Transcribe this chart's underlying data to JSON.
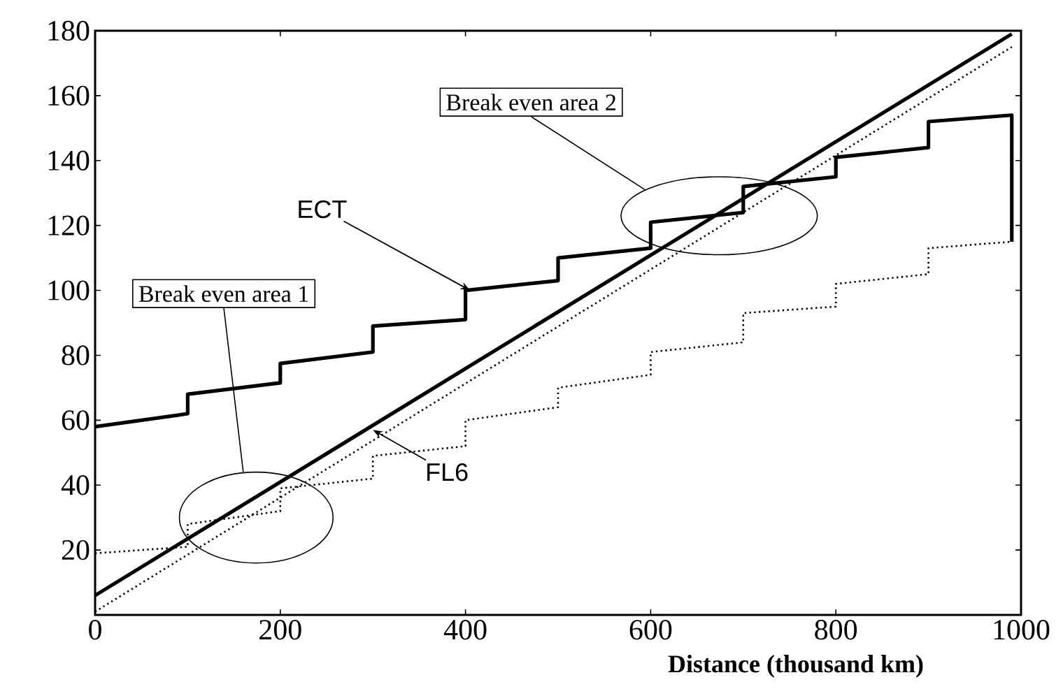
{
  "chart_data": {
    "type": "line",
    "xlabel": "Distance (thousand km)",
    "xlim": [
      0,
      1000
    ],
    "xticks": [
      0,
      200,
      400,
      600,
      800,
      1000
    ],
    "ylim": [
      0,
      180
    ],
    "yticks": [
      20,
      40,
      60,
      80,
      100,
      120,
      140,
      160,
      180
    ],
    "marker": "none",
    "series": [
      {
        "color": "#000000",
        "line_style": "solid",
        "x": [
          0,
          100,
          100,
          200,
          200,
          300,
          300,
          400,
          400,
          500,
          500,
          600,
          600,
          700,
          700,
          800,
          800,
          900,
          900,
          990,
          990
        ],
        "values": [
          58,
          62,
          68,
          71.5,
          77.5,
          81,
          89,
          91,
          100,
          103,
          110,
          113,
          121,
          124,
          132,
          135,
          141,
          144,
          152,
          154,
          115
        ]
      },
      {
        "color": "#000000",
        "line_style": "solid",
        "x": [
          0,
          990
        ],
        "values": [
          6,
          179
        ]
      },
      {
        "color": "#000000",
        "line_style": "dotted",
        "x": [
          0,
          990
        ],
        "values": [
          1,
          175
        ]
      },
      {
        "color": "#000000",
        "line_style": "dotted",
        "x": [
          0,
          100,
          100,
          200,
          200,
          300,
          300,
          400,
          400,
          500,
          500,
          600,
          600,
          700,
          700,
          800,
          800,
          900,
          900,
          990
        ],
        "values": [
          19,
          21,
          28,
          32,
          39,
          42,
          49,
          52,
          60,
          64,
          70,
          74,
          81,
          84,
          93,
          95,
          102,
          105,
          113,
          115
        ]
      }
    ],
    "annotations": [
      "Break even area 1",
      "Break even area 2",
      {
        "text": "ECT",
        "x": 405,
        "y": 100
      },
      {
        "text": "FL6",
        "x": 300,
        "y": 57
      }
    ]
  }
}
